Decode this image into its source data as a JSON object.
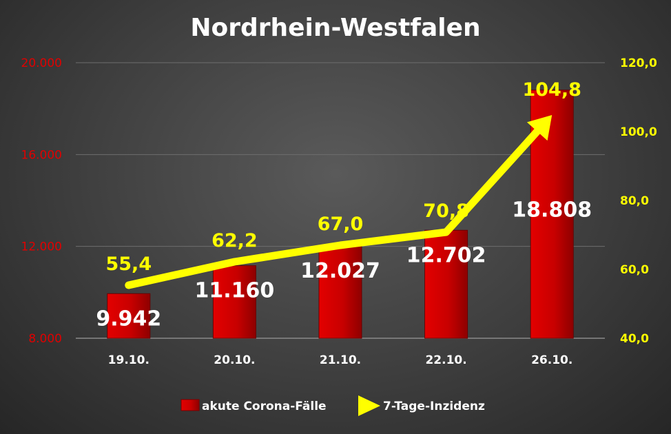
{
  "chart_data": {
    "type": "bar",
    "title": "Nordrhein-Westfalen",
    "categories": [
      "19.10.",
      "20.10.",
      "21.10.",
      "22.10.",
      "26.10."
    ],
    "series": [
      {
        "name": "akute Corona-Fälle",
        "type": "bar",
        "axis": "left",
        "color": "#cc0000",
        "values": [
          9942,
          11160,
          12027,
          12702,
          18808
        ],
        "labels": [
          "9.942",
          "11.160",
          "12.027",
          "12.702",
          "18.808"
        ]
      },
      {
        "name": "7-Tage-Inzidenz",
        "type": "line",
        "axis": "right",
        "color": "#ffff00",
        "values": [
          55.4,
          62.2,
          67.0,
          70.8,
          104.8
        ],
        "labels": [
          "55,4",
          "62,2",
          "67,0",
          "70,8",
          "104,8"
        ]
      }
    ],
    "y_left": {
      "lim": [
        8000,
        20000
      ],
      "ticks": [
        8000,
        12000,
        16000,
        20000
      ],
      "tick_labels": [
        "8.000",
        "12.000",
        "16.000",
        "20.000"
      ],
      "color": "#e00000"
    },
    "y_right": {
      "lim": [
        40,
        120
      ],
      "ticks": [
        40,
        60,
        80,
        100,
        120
      ],
      "tick_labels": [
        "40,0",
        "60,0",
        "80,0",
        "100,0",
        "120,0"
      ],
      "color": "#ffff00"
    },
    "grid": true,
    "legend": {
      "position": "bottom"
    }
  }
}
